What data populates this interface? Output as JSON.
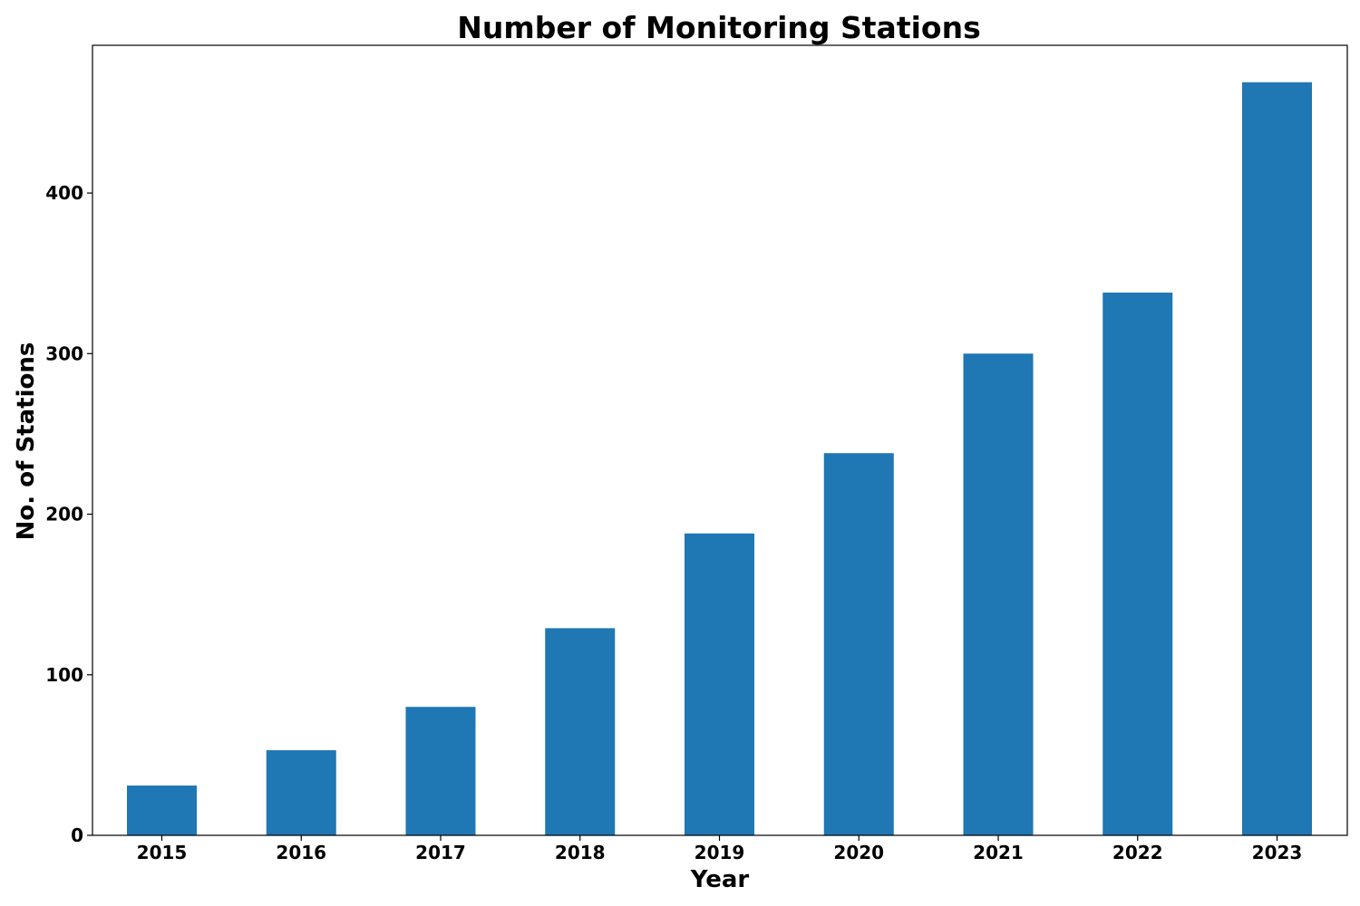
{
  "chart_data": {
    "type": "bar",
    "title": "Number of Monitoring Stations",
    "xlabel": "Year",
    "ylabel": "No. of Stations",
    "categories": [
      "2015",
      "2016",
      "2017",
      "2018",
      "2019",
      "2020",
      "2021",
      "2022",
      "2023"
    ],
    "values": [
      31,
      53,
      80,
      129,
      188,
      238,
      300,
      338,
      469
    ],
    "ylim": [
      0,
      492
    ],
    "yticks": [
      0,
      100,
      200,
      300,
      400
    ],
    "grid": false,
    "legend": "none",
    "bar_color": "#1f77b4"
  }
}
